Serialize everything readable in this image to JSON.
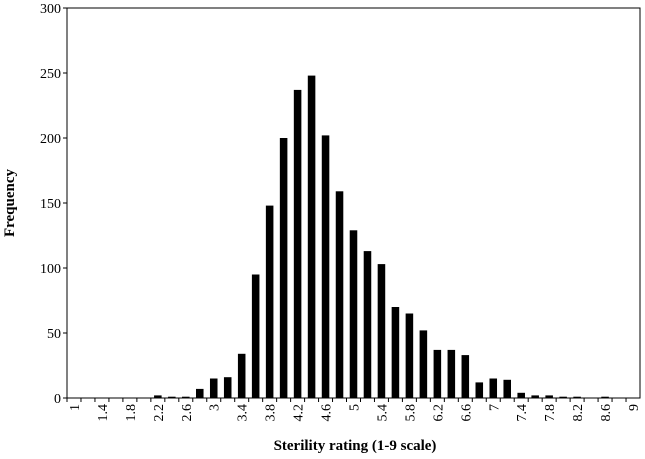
{
  "chart_data": {
    "type": "bar",
    "x_label": "Sterility rating (1-9 scale)",
    "y_label": "Frequency",
    "categories": [
      "1",
      null,
      "1.4",
      null,
      "1.8",
      null,
      "2.2",
      null,
      "2.6",
      null,
      "3",
      null,
      "3.4",
      null,
      "3.8",
      null,
      "4.2",
      null,
      "4.6",
      null,
      "5",
      null,
      "5.4",
      null,
      "5.8",
      null,
      "6.2",
      null,
      "6.6",
      null,
      "7",
      null,
      "7.4",
      null,
      "7.8",
      null,
      "8.2",
      null,
      "8.6",
      null,
      "9"
    ],
    "values": [
      0,
      0,
      0,
      0,
      0,
      0,
      2,
      1,
      1,
      7,
      15,
      16,
      34,
      95,
      148,
      200,
      237,
      248,
      202,
      159,
      129,
      113,
      103,
      70,
      65,
      52,
      37,
      37,
      33,
      12,
      15,
      14,
      4,
      2,
      2,
      1,
      1,
      0,
      1,
      0,
      0
    ],
    "color": "#000000",
    "ylim": [
      0,
      300
    ],
    "yticks": [
      0,
      50,
      100,
      150,
      200,
      250,
      300
    ],
    "grid": false
  }
}
